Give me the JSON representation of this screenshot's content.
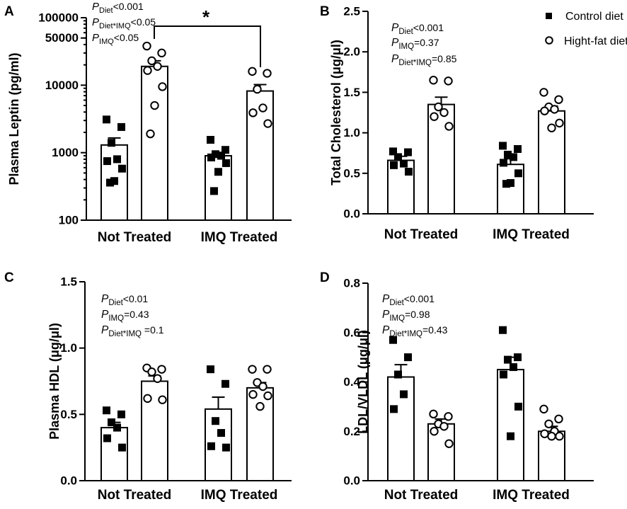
{
  "legend": {
    "control_label": "Control diet",
    "hfd_label": "Hight-fat diet"
  },
  "chart_data": [
    {
      "panel": "A",
      "type": "bar",
      "yscale": "log",
      "ylabel": "Plasma Leptin (pg/ml)",
      "ylim": [
        100,
        100000
      ],
      "yticks": [
        100,
        1000,
        10000,
        50000,
        100000
      ],
      "ytick_labels": [
        "100",
        "1000",
        "10000",
        "50000",
        "100000"
      ],
      "categories": [
        "Not Treated",
        "IMQ Treated"
      ],
      "series": [
        {
          "name": "Control diet",
          "values": [
            1300,
            900
          ],
          "errors": [
            350,
            110
          ],
          "points": [
            [
              3100,
              2400,
              1400,
              800,
              750,
              580,
              380,
              360
            ],
            [
              1550,
              1100,
              950,
              900,
              850,
              700,
              520,
              270
            ]
          ]
        },
        {
          "name": "Hight-fat diet",
          "values": [
            19000,
            8200
          ],
          "errors": [
            4000,
            2000
          ],
          "points": [
            [
              38000,
              30000,
              23000,
              19000,
              16500,
              9500,
              5000,
              1900
            ],
            [
              16000,
              15000,
              8700,
              4600,
              3900,
              2700
            ]
          ]
        }
      ],
      "annotations": {
        "stats": [
          {
            "p": "P",
            "sub": "Diet",
            "rest": "<0.001"
          },
          {
            "p": "P",
            "sub": "Diet*IMQ",
            "rest": "<0.05"
          },
          {
            "p": "P",
            "sub": "IMQ",
            "rest": "<0.05"
          }
        ],
        "significance": "*"
      }
    },
    {
      "panel": "B",
      "type": "bar",
      "yscale": "linear",
      "ylabel": "Total Cholesterol (μg/μl)",
      "ylim": [
        0,
        2.5
      ],
      "yticks": [
        0,
        0.5,
        1.0,
        1.5,
        2.0,
        2.5
      ],
      "ytick_labels": [
        "0.0",
        "0.5",
        "1.0",
        "1.5",
        "2.0",
        "2.5"
      ],
      "categories": [
        "Not Treated",
        "IMQ Treated"
      ],
      "series": [
        {
          "name": "Control diet",
          "values": [
            0.66,
            0.61
          ],
          "errors": [
            0.05,
            0.07
          ],
          "points": [
            [
              0.77,
              0.76,
              0.7,
              0.62,
              0.6,
              0.52
            ],
            [
              0.84,
              0.8,
              0.73,
              0.7,
              0.63,
              0.5,
              0.38,
              0.37
            ]
          ]
        },
        {
          "name": "Hight-fat diet",
          "values": [
            1.35,
            1.27
          ],
          "errors": [
            0.09,
            0.06
          ],
          "points": [
            [
              1.65,
              1.64,
              1.32,
              1.25,
              1.2,
              1.08
            ],
            [
              1.5,
              1.41,
              1.32,
              1.29,
              1.27,
              1.12,
              1.06
            ]
          ]
        }
      ],
      "annotations": {
        "stats": [
          {
            "p": "P",
            "sub": "Diet",
            "rest": "<0.001"
          },
          {
            "p": "P",
            "sub": "IMQ",
            "rest": "=0.37"
          },
          {
            "p": "P",
            "sub": "Diet*IMQ",
            "rest": "=0.85"
          }
        ]
      }
    },
    {
      "panel": "C",
      "type": "bar",
      "yscale": "linear",
      "ylabel": "Plasma HDL (μg/μl)",
      "ylim": [
        0,
        1.5
      ],
      "yticks": [
        0,
        0.5,
        1.0,
        1.5
      ],
      "ytick_labels": [
        "0.0",
        "0.5",
        "1.0",
        "1.5"
      ],
      "categories": [
        "Not Treated",
        "IMQ Treated"
      ],
      "series": [
        {
          "name": "Control diet",
          "values": [
            0.4,
            0.54
          ],
          "errors": [
            0.04,
            0.09
          ],
          "points": [
            [
              0.53,
              0.5,
              0.44,
              0.4,
              0.32,
              0.25
            ],
            [
              0.84,
              0.73,
              0.45,
              0.36,
              0.26,
              0.25
            ]
          ]
        },
        {
          "name": "Hight-fat diet",
          "values": [
            0.75,
            0.7
          ],
          "errors": [
            0.04,
            0.04
          ],
          "points": [
            [
              0.85,
              0.84,
              0.82,
              0.77,
              0.62,
              0.61
            ],
            [
              0.84,
              0.84,
              0.74,
              0.71,
              0.65,
              0.64,
              0.56
            ]
          ]
        }
      ],
      "annotations": {
        "stats": [
          {
            "p": "P",
            "sub": "Diet",
            "rest": "<0.01"
          },
          {
            "p": "P",
            "sub": "IMQ",
            "rest": "=0.43"
          },
          {
            "p": "P",
            "sub": "Diet*IMQ",
            "rest": " =0.1"
          }
        ]
      }
    },
    {
      "panel": "D",
      "type": "bar",
      "yscale": "linear",
      "ylabel": "LDL/VLDL (μg/μl)",
      "ylim": [
        0,
        0.8
      ],
      "yticks": [
        0,
        0.2,
        0.4,
        0.6,
        0.8
      ],
      "ytick_labels": [
        "0.0",
        "0.2",
        "0.4",
        "0.6",
        "0.8"
      ],
      "categories": [
        "Not Treated",
        "IMQ Treated"
      ],
      "series": [
        {
          "name": "Control diet",
          "values": [
            0.42,
            0.45
          ],
          "errors": [
            0.05,
            0.05
          ],
          "points": [
            [
              0.57,
              0.5,
              0.43,
              0.35,
              0.29
            ],
            [
              0.61,
              0.5,
              0.49,
              0.46,
              0.43,
              0.3,
              0.18
            ]
          ]
        },
        {
          "name": "Hight-fat diet",
          "values": [
            0.23,
            0.2
          ],
          "errors": [
            0.02,
            0.02
          ],
          "points": [
            [
              0.27,
              0.26,
              0.23,
              0.22,
              0.2,
              0.15
            ],
            [
              0.29,
              0.25,
              0.23,
              0.2,
              0.19,
              0.18,
              0.18
            ]
          ]
        }
      ],
      "annotations": {
        "stats": [
          {
            "p": "P",
            "sub": "Diet",
            "rest": "<0.001"
          },
          {
            "p": "P",
            "sub": "IMQ",
            "rest": "=0.98"
          },
          {
            "p": "P",
            "sub": "Diet*IMQ",
            "rest": "=0.43"
          }
        ]
      }
    }
  ]
}
